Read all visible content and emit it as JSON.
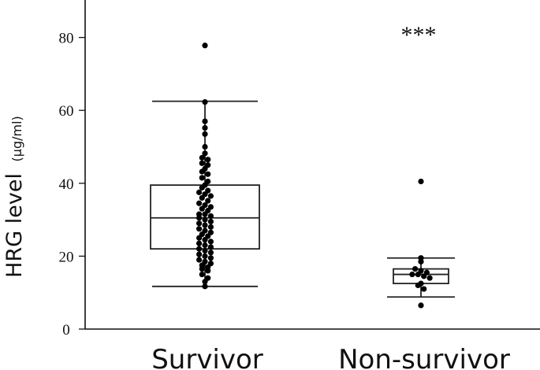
{
  "chart_data": {
    "type": "box",
    "ylabel": "HRG level",
    "ylabel_unit": "(μg/ml)",
    "ylim": [
      0,
      90
    ],
    "yticks": [
      0,
      20,
      40,
      60,
      80
    ],
    "categories": [
      "Survivor",
      "Non-survivor"
    ],
    "annotation": "***",
    "boxes": [
      {
        "category": "Survivor",
        "whisker_low": 11.7,
        "q1": 22.0,
        "median": 30.5,
        "q3": 39.5,
        "whisker_high": 62.5,
        "points": [
          77.8,
          62.3,
          57.0,
          55.2,
          53.5,
          50.0,
          48.2,
          47.0,
          46.5,
          45.5,
          45.0,
          44.0,
          43.2,
          42.5,
          41.5,
          40.5,
          39.5,
          38.8,
          38.0,
          37.5,
          37.0,
          36.5,
          36.0,
          35.2,
          34.5,
          34.0,
          33.5,
          33.0,
          32.5,
          31.5,
          31.5,
          31.0,
          30.5,
          30.0,
          29.5,
          29.0,
          28.5,
          28.0,
          27.5,
          27.0,
          26.5,
          26.0,
          25.5,
          25.0,
          24.5,
          24.0,
          23.5,
          23.0,
          22.5,
          22.0,
          21.5,
          21.0,
          20.5,
          20.0,
          19.5,
          19.0,
          18.5,
          18.0,
          17.5,
          17.0,
          16.5,
          16.0,
          15.0,
          14.0,
          13.0,
          11.7
        ]
      },
      {
        "category": "Non-survivor",
        "whisker_low": 8.8,
        "q1": 12.5,
        "median": 15.0,
        "q3": 16.5,
        "whisker_high": 19.5,
        "points": [
          40.5,
          19.5,
          18.5,
          16.5,
          16.0,
          15.5,
          15.0,
          15.0,
          14.5,
          14.0,
          12.5,
          12.0,
          11.0,
          6.5
        ]
      }
    ]
  }
}
